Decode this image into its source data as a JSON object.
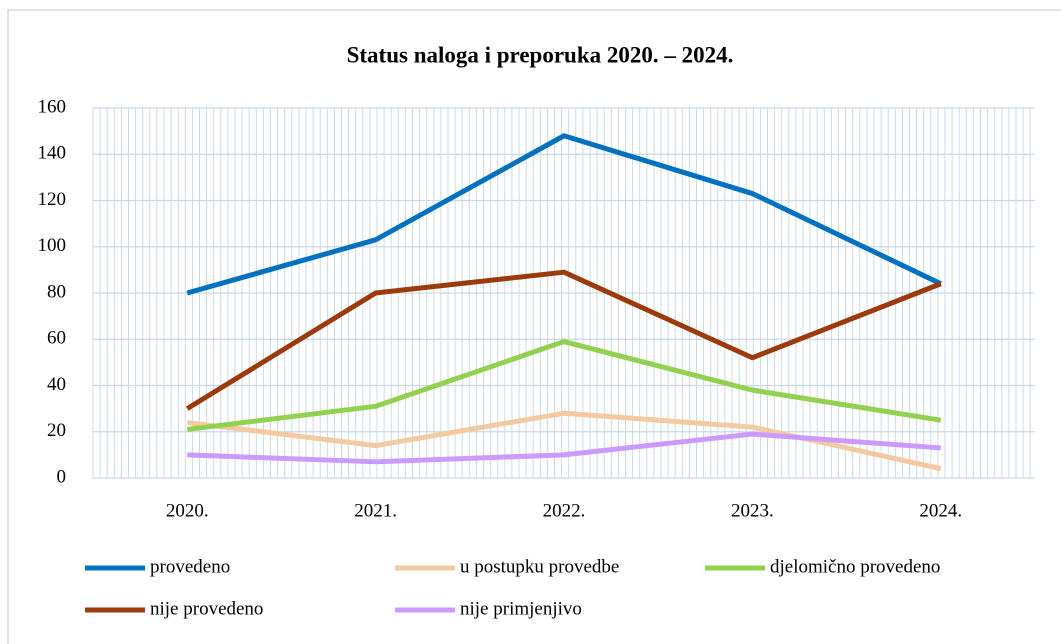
{
  "chart_data": {
    "type": "line",
    "title": "Status naloga i preporuka  2020. – 2024.",
    "categories": [
      "2020.",
      "2021.",
      "2022.",
      "2023.",
      "2024."
    ],
    "series": [
      {
        "name": "provedeno",
        "color": "#0070c0",
        "values": [
          80,
          103,
          148,
          123,
          84
        ]
      },
      {
        "name": "u postupku provedbe",
        "color": "#f2c9a1",
        "values": [
          24,
          14,
          28,
          22,
          4
        ]
      },
      {
        "name": "djelomično provedeno",
        "color": "#92d050",
        "values": [
          21,
          31,
          59,
          38,
          25
        ]
      },
      {
        "name": "nije provedeno",
        "color": "#9c3a0c",
        "values": [
          30,
          80,
          89,
          52,
          84
        ]
      },
      {
        "name": "nije primjenjivo",
        "color": "#cc99ff",
        "values": [
          10,
          7,
          10,
          19,
          13
        ]
      }
    ],
    "ylim": [
      0,
      160
    ],
    "yticks": [
      0,
      20,
      40,
      60,
      80,
      100,
      120,
      140,
      160
    ],
    "grid": true
  }
}
